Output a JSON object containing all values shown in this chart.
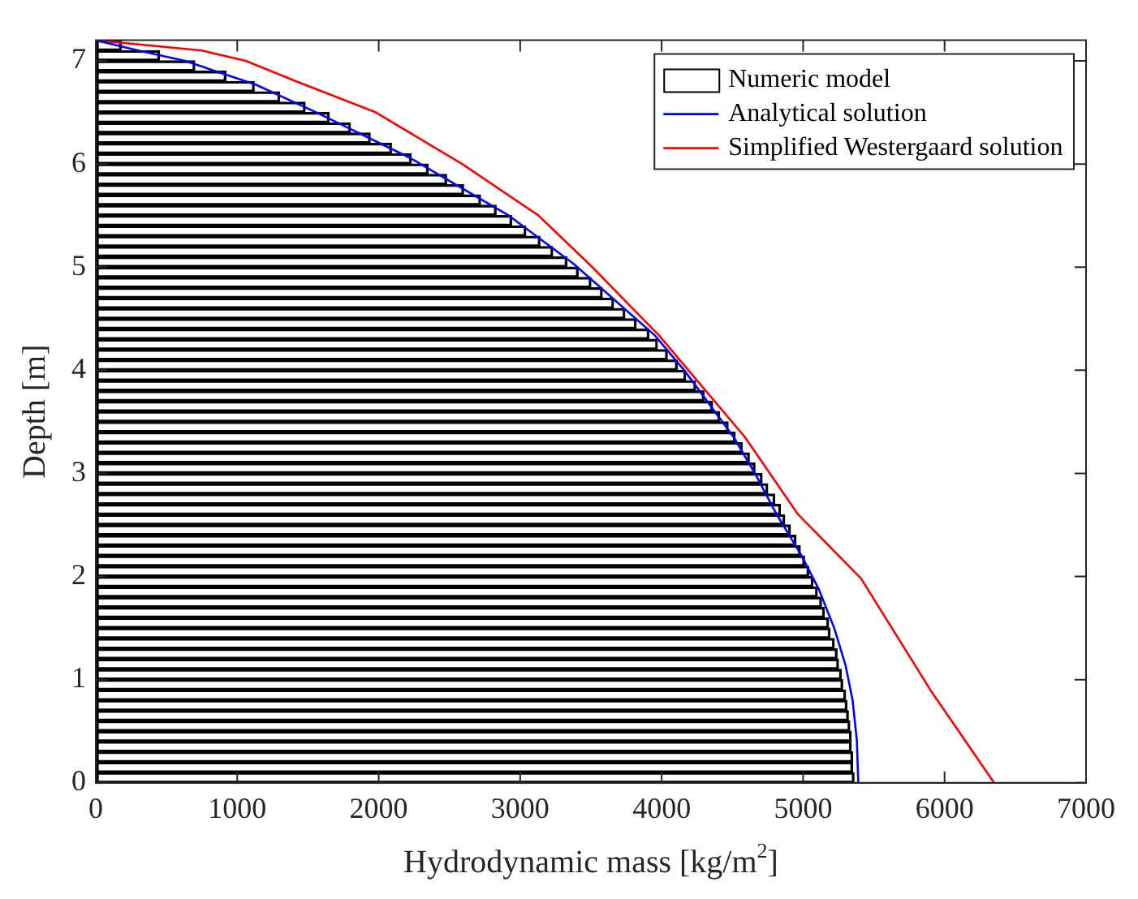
{
  "chart_data": {
    "type": "bar",
    "orientation": "horizontal",
    "xlabel": "Hydrodynamic mass [kg/m$^{2}$]",
    "ylabel": "Depth [m]",
    "xlim": [
      0,
      7000
    ],
    "xticks": [
      0,
      1000,
      2000,
      3000,
      4000,
      5000,
      6000,
      7000
    ],
    "ylim": [
      0,
      7.2
    ],
    "yticks": [
      0,
      1,
      2,
      3,
      4,
      5,
      6,
      7
    ],
    "grid": false,
    "legend": "top right",
    "series": [
      {
        "name": "Numeric model",
        "color": "#000000",
        "x": [
          7.15,
          7.05,
          6.95,
          6.85,
          6.75,
          6.65,
          6.55,
          6.45,
          6.35,
          6.25,
          6.15,
          6.05,
          5.95,
          5.85,
          5.75,
          5.65,
          5.55,
          5.45,
          5.35,
          5.25,
          5.15,
          5.05,
          4.95,
          4.85,
          4.75,
          4.65,
          4.55,
          4.45,
          4.35,
          4.25,
          4.15,
          4.05,
          3.95,
          3.85,
          3.75,
          3.65,
          3.55,
          3.45,
          3.35,
          3.25,
          3.15,
          3.05,
          2.95,
          2.85,
          2.75,
          2.65,
          2.55,
          2.45,
          2.35,
          2.25,
          2.15,
          2.05,
          1.95,
          1.85,
          1.75,
          1.65,
          1.55,
          1.45,
          1.35,
          1.25,
          1.15,
          1.05,
          0.95,
          0.85,
          0.75,
          0.65,
          0.55,
          0.45,
          0.35,
          0.25,
          0.15,
          0.05
        ],
        "values": [
          180,
          450,
          700,
          920,
          1120,
          1300,
          1480,
          1650,
          1800,
          1940,
          2090,
          2230,
          2350,
          2480,
          2600,
          2720,
          2830,
          2940,
          3040,
          3140,
          3230,
          3330,
          3410,
          3500,
          3580,
          3660,
          3740,
          3820,
          3910,
          3970,
          4040,
          4110,
          4170,
          4240,
          4300,
          4360,
          4410,
          4470,
          4520,
          4570,
          4620,
          4660,
          4710,
          4750,
          4800,
          4840,
          4870,
          4910,
          4950,
          4980,
          5010,
          5040,
          5070,
          5100,
          5130,
          5150,
          5180,
          5190,
          5220,
          5240,
          5250,
          5270,
          5280,
          5300,
          5310,
          5320,
          5330,
          5340,
          5340,
          5350,
          5350,
          5360
        ]
      },
      {
        "name": "Analytical solution",
        "type": "line",
        "color": "#0000ff",
        "x": [
          7.2,
          7.1,
          7.0,
          6.77,
          6.5,
          6.06,
          5.5,
          5.03,
          4.34,
          4.0,
          3.35,
          3.0,
          2.61,
          2.2,
          1.88,
          1.5,
          1.14,
          0.8,
          0.41,
          0
        ],
        "values": [
          0,
          300,
          630,
          1130,
          1560,
          2220,
          2920,
          3380,
          3950,
          4160,
          4510,
          4660,
          4810,
          4990,
          5110,
          5220,
          5300,
          5350,
          5380,
          5390
        ]
      },
      {
        "name": "Simplified Westergaard solution",
        "type": "line",
        "color": "#ff0000",
        "x": [
          7.2,
          7.1,
          7.0,
          6.8,
          6.5,
          6.0,
          5.5,
          5.0,
          4.34,
          3.35,
          2.61,
          1.98,
          0.9,
          0
        ],
        "values": [
          0,
          750,
          1060,
          1420,
          1980,
          2590,
          3130,
          3510,
          3980,
          4590,
          4960,
          5410,
          5900,
          6350
        ]
      }
    ]
  }
}
